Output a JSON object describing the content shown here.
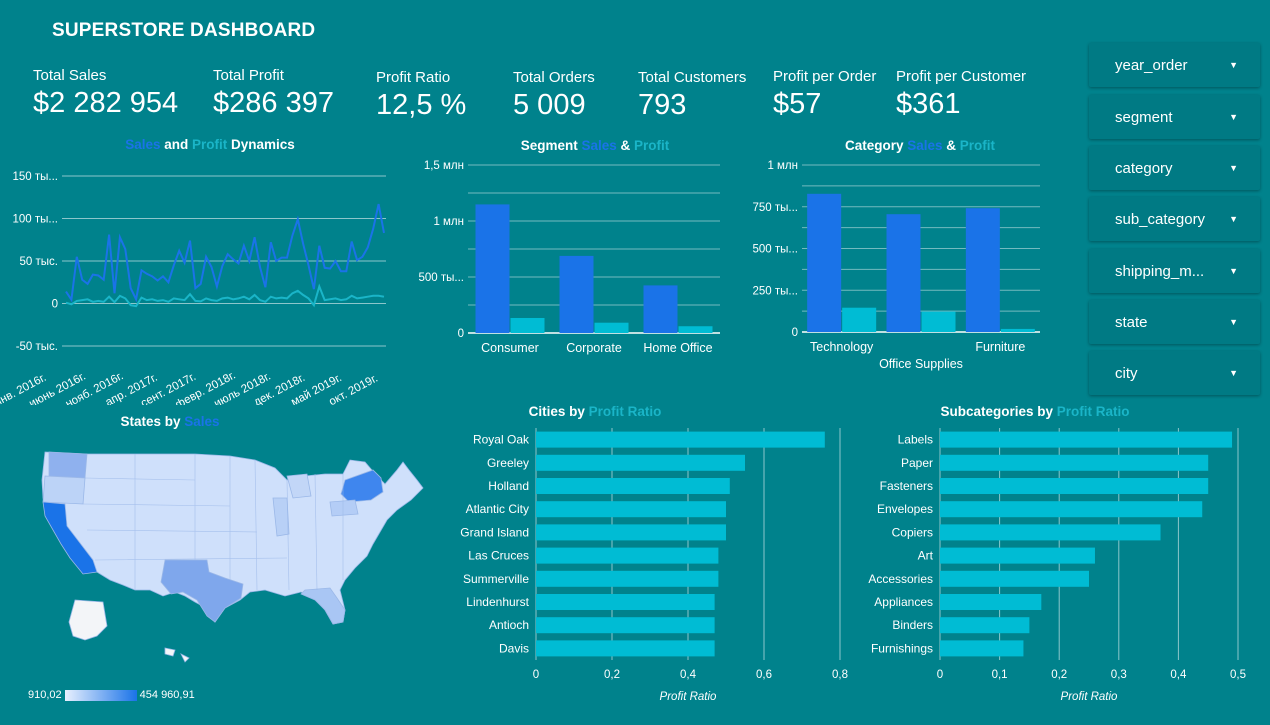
{
  "dashboard_title": "SUPERSTORE DASHBOARD",
  "kpis": [
    {
      "label": "Total Sales",
      "value": "$2 282 954"
    },
    {
      "label": "Total Profit",
      "value": "$286 397"
    },
    {
      "label": "Profit Ratio",
      "value": "12,5 %"
    },
    {
      "label": "Total Orders",
      "value": "5 009"
    },
    {
      "label": "Total Customers",
      "value": "793"
    },
    {
      "label": "Profit per Order",
      "value": "$57"
    },
    {
      "label": "Profit per Customer",
      "value": "$361"
    }
  ],
  "filters": [
    "year_order",
    "segment",
    "category",
    "sub_category",
    "shipping_m...",
    "state",
    "city"
  ],
  "colors": {
    "background": "#00828c",
    "sales": "#1a73e8",
    "profit": "#1ab5c8",
    "bars": "#00bcd4"
  },
  "titles": {
    "dynamics": {
      "sales": "Sales",
      "and": " and ",
      "profit": "Profit",
      "rest": " Dynamics"
    },
    "segment": {
      "prefix": "Segment ",
      "sales": "Sales",
      "amp": " & ",
      "profit": "Profit"
    },
    "category": {
      "prefix": "Category ",
      "sales": "Sales",
      "amp": " & ",
      "profit": "Profit"
    },
    "states": {
      "prefix": "States by ",
      "sales": "Sales"
    },
    "cities": {
      "prefix": "Cities by ",
      "profit_ratio": "Profit Ratio"
    },
    "subcats": {
      "prefix": "Subcategories by ",
      "profit_ratio": "Profit Ratio"
    }
  },
  "map_legend": {
    "min": "910,02",
    "max": "454 960,91"
  },
  "chart_data": [
    {
      "id": "dynamics",
      "type": "line",
      "x_tick_labels": [
        "янв. 2016г.",
        "июнь 2016г.",
        "нояб. 2016г.",
        "апр. 2017г.",
        "сент. 2017г.",
        "февр. 2018г.",
        "июль 2018г.",
        "дек. 2018г.",
        "май 2019г.",
        "окт. 2019г."
      ],
      "y_tick_labels": [
        "150 ты...",
        "100 ты...",
        "50 тыс.",
        "0",
        "-50 тыс."
      ],
      "ylim": [
        -50000,
        150000
      ],
      "series": [
        {
          "name": "Sales",
          "values": [
            14000,
            4500,
            55000,
            28000,
            23000,
            34000,
            33000,
            28000,
            81000,
            12000,
            78000,
            64000,
            18000,
            5000,
            39000,
            35000,
            32000,
            27000,
            32000,
            25000,
            45000,
            62000,
            48000,
            74000,
            18000,
            23000,
            55000,
            43000,
            20000,
            44000,
            58000,
            52000,
            47000,
            68000,
            50000,
            78000,
            43000,
            19000,
            72000,
            50000,
            54000,
            54000,
            80000,
            99000,
            70000,
            45000,
            17000,
            68000,
            42000,
            41000,
            50000,
            38000,
            38000,
            73000,
            51000,
            55000,
            66000,
            88000,
            117000,
            83000
          ]
        },
        {
          "name": "Profit",
          "values": [
            1000,
            -1000,
            3000,
            4000,
            5000,
            2000,
            3000,
            2000,
            8000,
            1500,
            9000,
            6000,
            -2000,
            -3000,
            7000,
            4000,
            5000,
            3000,
            4000,
            2000,
            6000,
            5000,
            4000,
            11000,
            3000,
            2500,
            6000,
            4000,
            3000,
            6000,
            7000,
            5000,
            6000,
            8000,
            5000,
            10000,
            4000,
            2000,
            8000,
            6000,
            7000,
            6000,
            12000,
            15000,
            10000,
            6000,
            -2000,
            20000,
            4000,
            5000,
            6000,
            4000,
            5000,
            9000,
            6000,
            7000,
            8000,
            9000,
            9000,
            8000
          ]
        }
      ]
    },
    {
      "id": "segment",
      "type": "bar",
      "categories": [
        "Consumer",
        "Corporate",
        "Home Office"
      ],
      "series": [
        {
          "name": "Sales",
          "values": [
            1148061,
            688494,
            424982
          ]
        },
        {
          "name": "Profit",
          "values": [
            134119,
            91979,
            60299
          ]
        }
      ],
      "y_tick_labels": [
        "1,5 млн",
        "1 млн",
        "500 ты...",
        "0"
      ],
      "ylim": [
        0,
        1500000
      ]
    },
    {
      "id": "category",
      "type": "bar",
      "categories": [
        "Technology",
        "Office Supplies",
        "Furniture"
      ],
      "series": [
        {
          "name": "Sales",
          "values": [
            827456,
            705422,
            741306
          ]
        },
        {
          "name": "Profit",
          "values": [
            145455,
            122491,
            18451
          ]
        }
      ],
      "y_tick_labels": [
        "1 млн",
        "750 ты...",
        "500 ты...",
        "250 ты...",
        "0"
      ],
      "ylim": [
        0,
        1000000
      ]
    },
    {
      "id": "cities",
      "type": "bar",
      "orientation": "horizontal",
      "categories": [
        "Royal Oak",
        "Greeley",
        "Holland",
        "Atlantic City",
        "Grand Island",
        "Las Cruces",
        "Summerville",
        "Lindenhurst",
        "Antioch",
        "Davis"
      ],
      "values": [
        0.76,
        0.55,
        0.51,
        0.5,
        0.5,
        0.48,
        0.48,
        0.47,
        0.47,
        0.47
      ],
      "x_tick_labels": [
        "0",
        "0,2",
        "0,4",
        "0,6",
        "0,8"
      ],
      "xlim": [
        0,
        0.8
      ],
      "xlabel": "Profit Ratio"
    },
    {
      "id": "subcats",
      "type": "bar",
      "orientation": "horizontal",
      "categories": [
        "Labels",
        "Paper",
        "Fasteners",
        "Envelopes",
        "Copiers",
        "Art",
        "Accessories",
        "Appliances",
        "Binders",
        "Furnishings"
      ],
      "values": [
        0.49,
        0.45,
        0.45,
        0.44,
        0.37,
        0.26,
        0.25,
        0.17,
        0.15,
        0.14
      ],
      "x_tick_labels": [
        "0",
        "0,1",
        "0,2",
        "0,3",
        "0,4",
        "0,5"
      ],
      "xlim": [
        0,
        0.5
      ],
      "xlabel": "Profit Ratio"
    }
  ]
}
